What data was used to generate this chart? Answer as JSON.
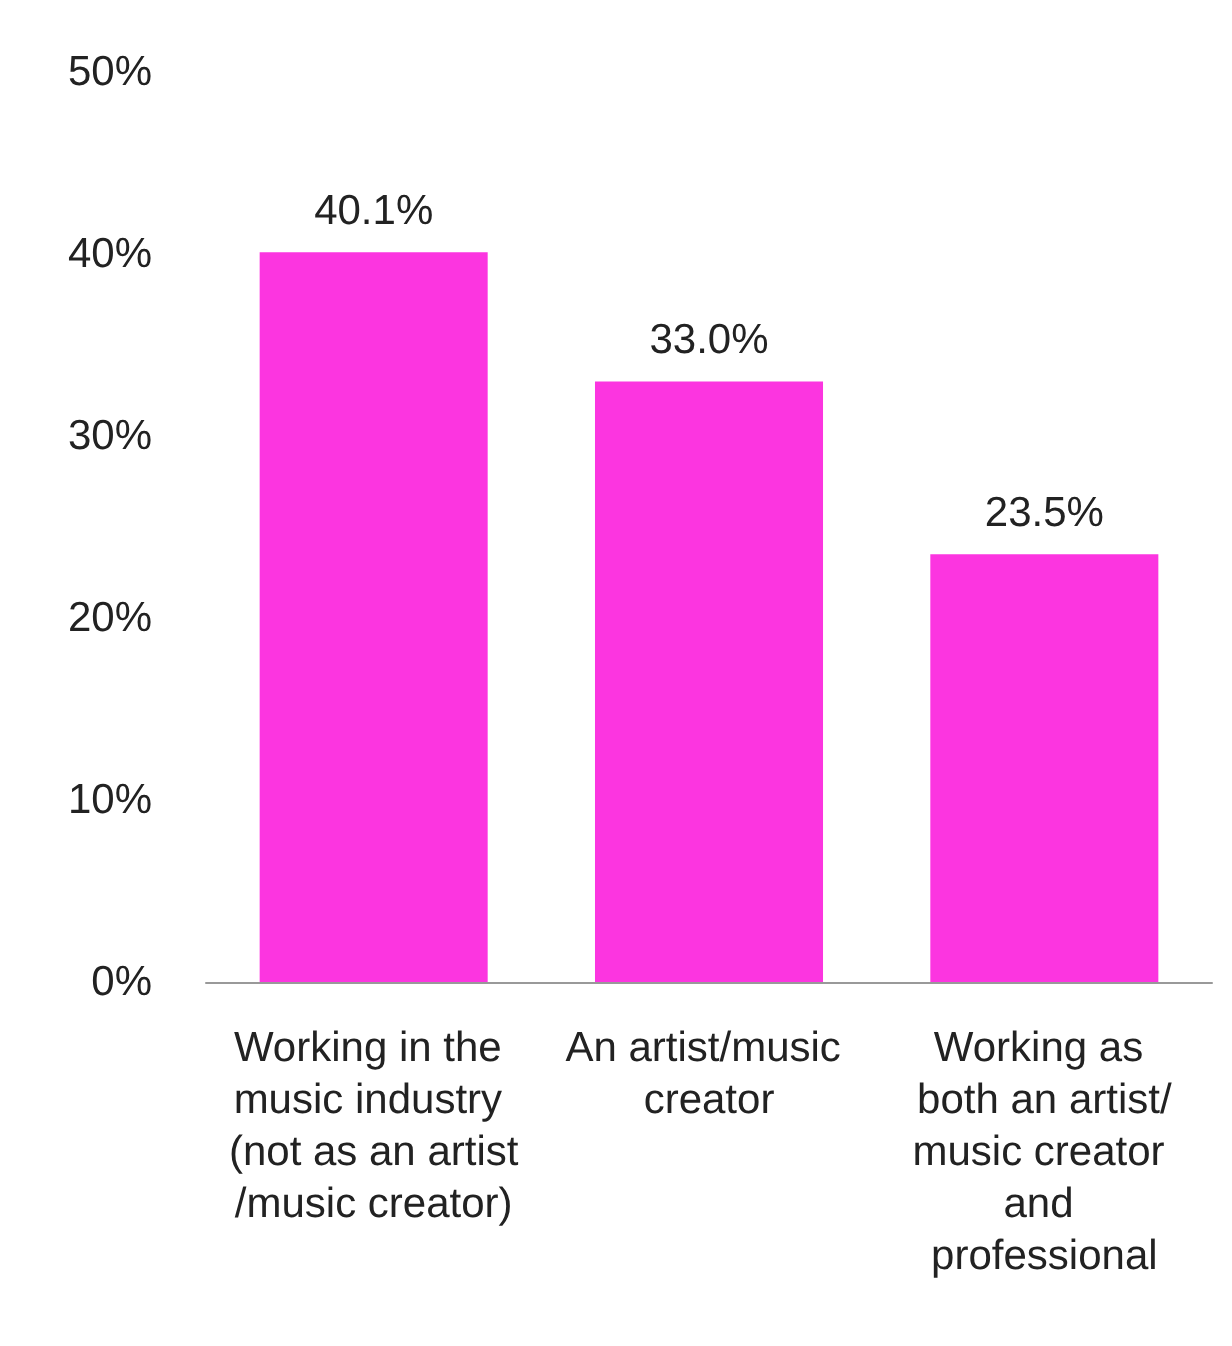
{
  "chart_data": {
    "type": "bar",
    "categories": [
      "Working in the music industry (not as an artist/music creator)",
      "An artist/music creator",
      "Working as both an artist/music creator and professional"
    ],
    "values": [
      40.1,
      33.0,
      23.5
    ],
    "color": "#fc35e0",
    "value_labels": [
      "40.1%",
      "33.0%",
      "23.5%"
    ],
    "ylim": [
      0,
      50
    ],
    "yticks": [
      {
        "value": 0,
        "label": "0%"
      },
      {
        "value": 10,
        "label": "10%"
      },
      {
        "value": 20,
        "label": "20%"
      },
      {
        "value": 30,
        "label": "30%"
      },
      {
        "value": 40,
        "label": "40%"
      },
      {
        "value": 50,
        "label": "50%"
      }
    ],
    "grid": false
  }
}
